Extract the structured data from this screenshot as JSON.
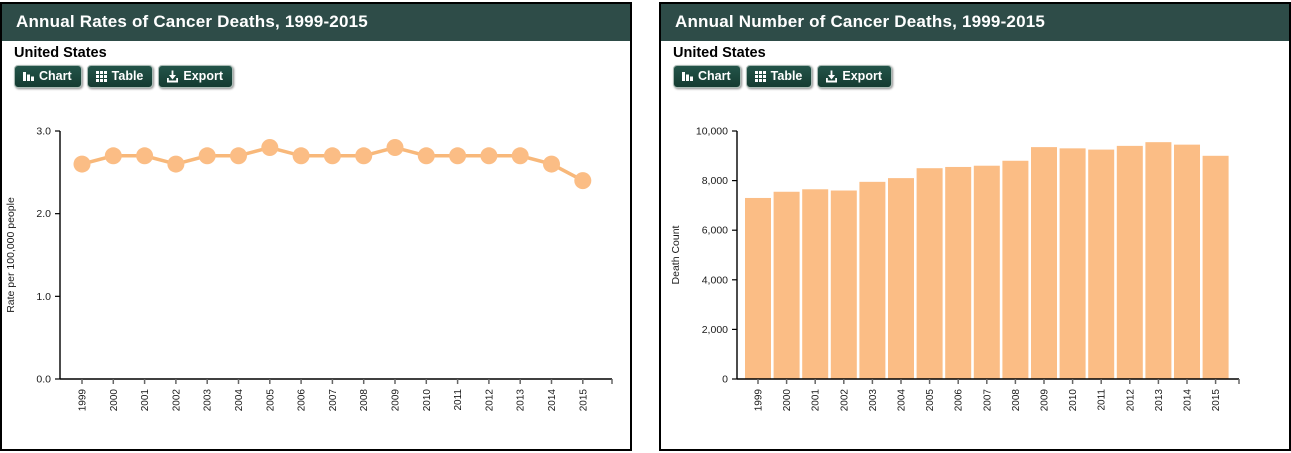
{
  "panels": [
    {
      "title": "Annual Rates of Cancer Deaths, 1999-2015",
      "region": "United States"
    },
    {
      "title": "Annual Number of Cancer Deaths, 1999-2015",
      "region": "United States"
    }
  ],
  "toolbar": {
    "chart_label": "Chart",
    "table_label": "Table",
    "export_label": "Export"
  },
  "icons": {
    "chart_icon": "bar-chart-glyph",
    "table_icon": "grid-glyph",
    "export_icon": "download-glyph"
  },
  "colors": {
    "header_bg": "#2E4C48",
    "button_bg": "#1A4A3D",
    "series_fill": "#FBBD85",
    "line_stroke": "#F8B87A",
    "axis": "#000000",
    "tick": "#666666"
  },
  "chart_data": [
    {
      "type": "line",
      "title": "Annual Rates of Cancer Deaths, 1999-2015",
      "region": "United States",
      "x": [
        "1999",
        "2000",
        "2001",
        "2002",
        "2003",
        "2004",
        "2005",
        "2006",
        "2007",
        "2008",
        "2009",
        "2010",
        "2011",
        "2012",
        "2013",
        "2014",
        "2015"
      ],
      "values": [
        2.6,
        2.7,
        2.7,
        2.6,
        2.7,
        2.7,
        2.8,
        2.7,
        2.7,
        2.7,
        2.8,
        2.7,
        2.7,
        2.7,
        2.7,
        2.6,
        2.4
      ],
      "xlabel": "",
      "ylabel": "Rate per 100,000 people",
      "ylim": [
        0,
        3
      ],
      "ytick_labels": [
        "0.0",
        "1.0",
        "2.0",
        "3.0"
      ],
      "grid": false,
      "legend": "none",
      "marker": "circle"
    },
    {
      "type": "bar",
      "title": "Annual Number of Cancer Deaths, 1999-2015",
      "region": "United States",
      "x": [
        "1999",
        "2000",
        "2001",
        "2002",
        "2003",
        "2004",
        "2005",
        "2006",
        "2007",
        "2008",
        "2009",
        "2010",
        "2011",
        "2012",
        "2013",
        "2014",
        "2015"
      ],
      "values": [
        7300,
        7550,
        7650,
        7600,
        7950,
        8100,
        8500,
        8550,
        8600,
        8800,
        9350,
        9300,
        9250,
        9400,
        9550,
        9450,
        9000
      ],
      "xlabel": "",
      "ylabel": "Death Count",
      "ylim": [
        0,
        10000
      ],
      "ytick_labels": [
        "0",
        "2,000",
        "4,000",
        "6,000",
        "8,000",
        "10,000"
      ],
      "grid": false,
      "legend": "none"
    }
  ]
}
